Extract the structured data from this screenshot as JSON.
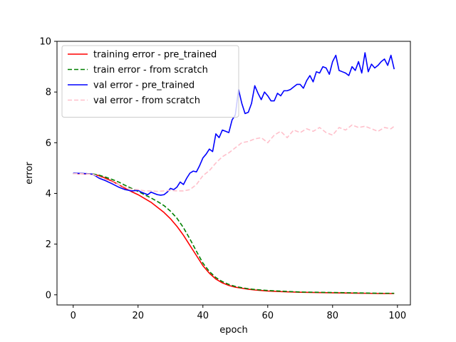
{
  "chart_data": {
    "type": "line",
    "title": "",
    "xlabel": "epoch",
    "ylabel": "error",
    "xlim": [
      -5,
      104
    ],
    "ylim": [
      -0.4,
      10
    ],
    "xticks": [
      0,
      20,
      40,
      60,
      80,
      100
    ],
    "yticks": [
      0,
      2,
      4,
      6,
      8,
      10
    ],
    "grid": false,
    "legend_position": "top-left",
    "series": [
      {
        "name": "training error - pre_trained",
        "color": "#ff0000",
        "dash": "solid",
        "x": [
          0,
          2,
          4,
          6,
          8,
          10,
          12,
          14,
          16,
          18,
          20,
          22,
          24,
          26,
          28,
          30,
          32,
          34,
          36,
          38,
          40,
          42,
          44,
          46,
          48,
          50,
          52,
          54,
          56,
          58,
          60,
          65,
          70,
          75,
          80,
          85,
          90,
          95,
          99
        ],
        "y": [
          4.78,
          4.78,
          4.77,
          4.76,
          4.7,
          4.6,
          4.48,
          4.35,
          4.2,
          4.07,
          3.95,
          3.8,
          3.65,
          3.45,
          3.25,
          3.0,
          2.7,
          2.35,
          1.95,
          1.55,
          1.15,
          0.85,
          0.62,
          0.47,
          0.37,
          0.3,
          0.26,
          0.22,
          0.19,
          0.17,
          0.15,
          0.12,
          0.1,
          0.09,
          0.08,
          0.07,
          0.06,
          0.05,
          0.05
        ]
      },
      {
        "name": "train error - from scratch",
        "color": "#008000",
        "dash": "dashed",
        "x": [
          0,
          2,
          4,
          6,
          8,
          10,
          12,
          14,
          16,
          18,
          20,
          22,
          24,
          26,
          28,
          30,
          32,
          34,
          36,
          38,
          40,
          42,
          44,
          46,
          48,
          50,
          52,
          54,
          56,
          58,
          60,
          65,
          70,
          75,
          80,
          85,
          90,
          95,
          99
        ],
        "y": [
          4.78,
          4.78,
          4.78,
          4.77,
          4.72,
          4.64,
          4.55,
          4.45,
          4.32,
          4.2,
          4.08,
          3.95,
          3.82,
          3.68,
          3.52,
          3.3,
          3.02,
          2.65,
          2.2,
          1.72,
          1.25,
          0.92,
          0.68,
          0.52,
          0.41,
          0.33,
          0.28,
          0.24,
          0.21,
          0.19,
          0.17,
          0.14,
          0.11,
          0.1,
          0.09,
          0.08,
          0.07,
          0.06,
          0.06
        ]
      },
      {
        "name": "val error - pre_trained",
        "color": "#0000ff",
        "dash": "solid",
        "x": [
          0,
          2,
          4,
          6,
          8,
          10,
          12,
          14,
          16,
          18,
          20,
          21,
          22,
          23,
          24,
          25,
          26,
          27,
          28,
          29,
          30,
          31,
          32,
          33,
          34,
          35,
          36,
          37,
          38,
          39,
          40,
          41,
          42,
          43,
          44,
          45,
          46,
          47,
          48,
          49,
          50,
          51,
          52,
          53,
          54,
          55,
          56,
          57,
          58,
          59,
          60,
          61,
          62,
          63,
          64,
          65,
          66,
          67,
          68,
          69,
          70,
          71,
          72,
          73,
          74,
          75,
          76,
          77,
          78,
          79,
          80,
          81,
          82,
          83,
          84,
          85,
          86,
          87,
          88,
          89,
          90,
          91,
          92,
          93,
          94,
          95,
          96,
          97,
          98,
          99
        ],
        "y": [
          4.8,
          4.79,
          4.78,
          4.76,
          4.6,
          4.5,
          4.38,
          4.25,
          4.15,
          4.1,
          4.12,
          4.05,
          4.0,
          3.95,
          4.05,
          4.0,
          3.95,
          3.93,
          3.95,
          4.05,
          4.2,
          4.15,
          4.25,
          4.45,
          4.35,
          4.6,
          4.8,
          4.88,
          4.85,
          5.1,
          5.4,
          5.55,
          5.75,
          5.65,
          6.35,
          6.2,
          6.5,
          6.45,
          6.4,
          6.9,
          7.1,
          8.1,
          7.55,
          7.15,
          7.2,
          7.55,
          8.25,
          7.95,
          7.7,
          8.0,
          7.85,
          7.65,
          7.65,
          7.95,
          7.85,
          8.05,
          8.05,
          8.1,
          8.2,
          8.3,
          8.3,
          8.15,
          8.45,
          8.65,
          8.4,
          8.8,
          8.75,
          9.0,
          8.95,
          8.7,
          9.2,
          9.45,
          8.85,
          8.8,
          8.75,
          8.65,
          9.0,
          8.85,
          9.2,
          8.75,
          9.55,
          8.8,
          9.1,
          8.95,
          9.05,
          9.2,
          9.3,
          9.05,
          9.45,
          8.9
        ]
      },
      {
        "name": "val error - from scratch",
        "color": "#ffc0cb",
        "dash": "dashed",
        "x": [
          0,
          2,
          4,
          6,
          8,
          10,
          12,
          14,
          16,
          18,
          20,
          22,
          24,
          26,
          28,
          30,
          32,
          34,
          36,
          38,
          40,
          42,
          44,
          46,
          48,
          50,
          52,
          54,
          56,
          58,
          60,
          62,
          64,
          66,
          68,
          70,
          72,
          74,
          76,
          78,
          80,
          82,
          84,
          86,
          88,
          90,
          92,
          94,
          96,
          98,
          99
        ],
        "y": [
          4.78,
          4.78,
          4.77,
          4.76,
          4.65,
          4.55,
          4.45,
          4.35,
          4.25,
          4.17,
          4.15,
          4.1,
          4.1,
          4.08,
          4.1,
          4.12,
          4.1,
          4.1,
          4.15,
          4.35,
          4.7,
          4.9,
          5.2,
          5.45,
          5.6,
          5.8,
          6.0,
          6.05,
          6.15,
          6.2,
          6.0,
          6.3,
          6.45,
          6.2,
          6.5,
          6.4,
          6.55,
          6.45,
          6.6,
          6.4,
          6.3,
          6.6,
          6.5,
          6.7,
          6.6,
          6.65,
          6.55,
          6.45,
          6.6,
          6.55,
          6.65
        ]
      }
    ]
  }
}
